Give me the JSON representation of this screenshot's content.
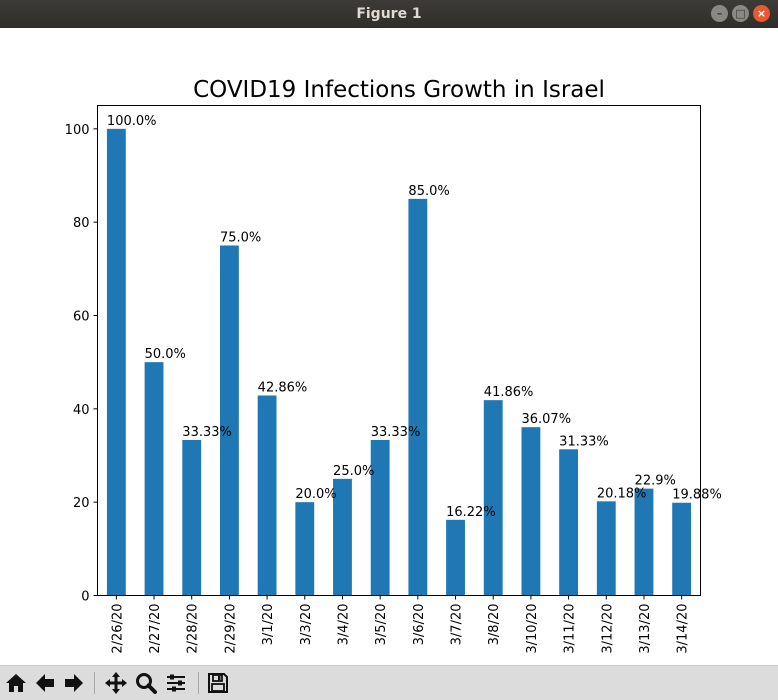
{
  "window": {
    "title": "Figure 1"
  },
  "toolbar": {
    "tools": [
      {
        "name": "home-icon"
      },
      {
        "name": "back-arrow-icon"
      },
      {
        "name": "forward-arrow-icon"
      },
      {
        "name": "pan-icon"
      },
      {
        "name": "zoom-icon"
      },
      {
        "name": "configure-subplots-icon"
      },
      {
        "name": "save-icon"
      }
    ]
  },
  "chart_data": {
    "type": "bar",
    "title": "COVID19 Infections Growth in Israel",
    "xlabel": "",
    "ylabel": "",
    "categories": [
      "2/26/20",
      "2/27/20",
      "2/28/20",
      "2/29/20",
      "3/1/20",
      "3/3/20",
      "3/4/20",
      "3/5/20",
      "3/6/20",
      "3/7/20",
      "3/8/20",
      "3/10/20",
      "3/11/20",
      "3/12/20",
      "3/13/20",
      "3/14/20"
    ],
    "values": [
      100.0,
      50.0,
      33.33,
      75.0,
      42.86,
      20.0,
      25.0,
      33.33,
      85.0,
      16.22,
      41.86,
      36.07,
      31.33,
      20.18,
      22.9,
      19.88
    ],
    "labels": [
      "100.0%",
      "50.0%",
      "33.33%",
      "75.0%",
      "42.86%",
      "20.0%",
      "25.0%",
      "33.33%",
      "85.0%",
      "16.22%",
      "41.86%",
      "36.07%",
      "31.33%",
      "20.18%",
      "22.9%",
      "19.88%"
    ],
    "ylim": [
      0,
      105
    ],
    "yticks": [
      0,
      20,
      40,
      60,
      80,
      100
    ],
    "grid": false,
    "bar_color": "#1f77b4"
  }
}
